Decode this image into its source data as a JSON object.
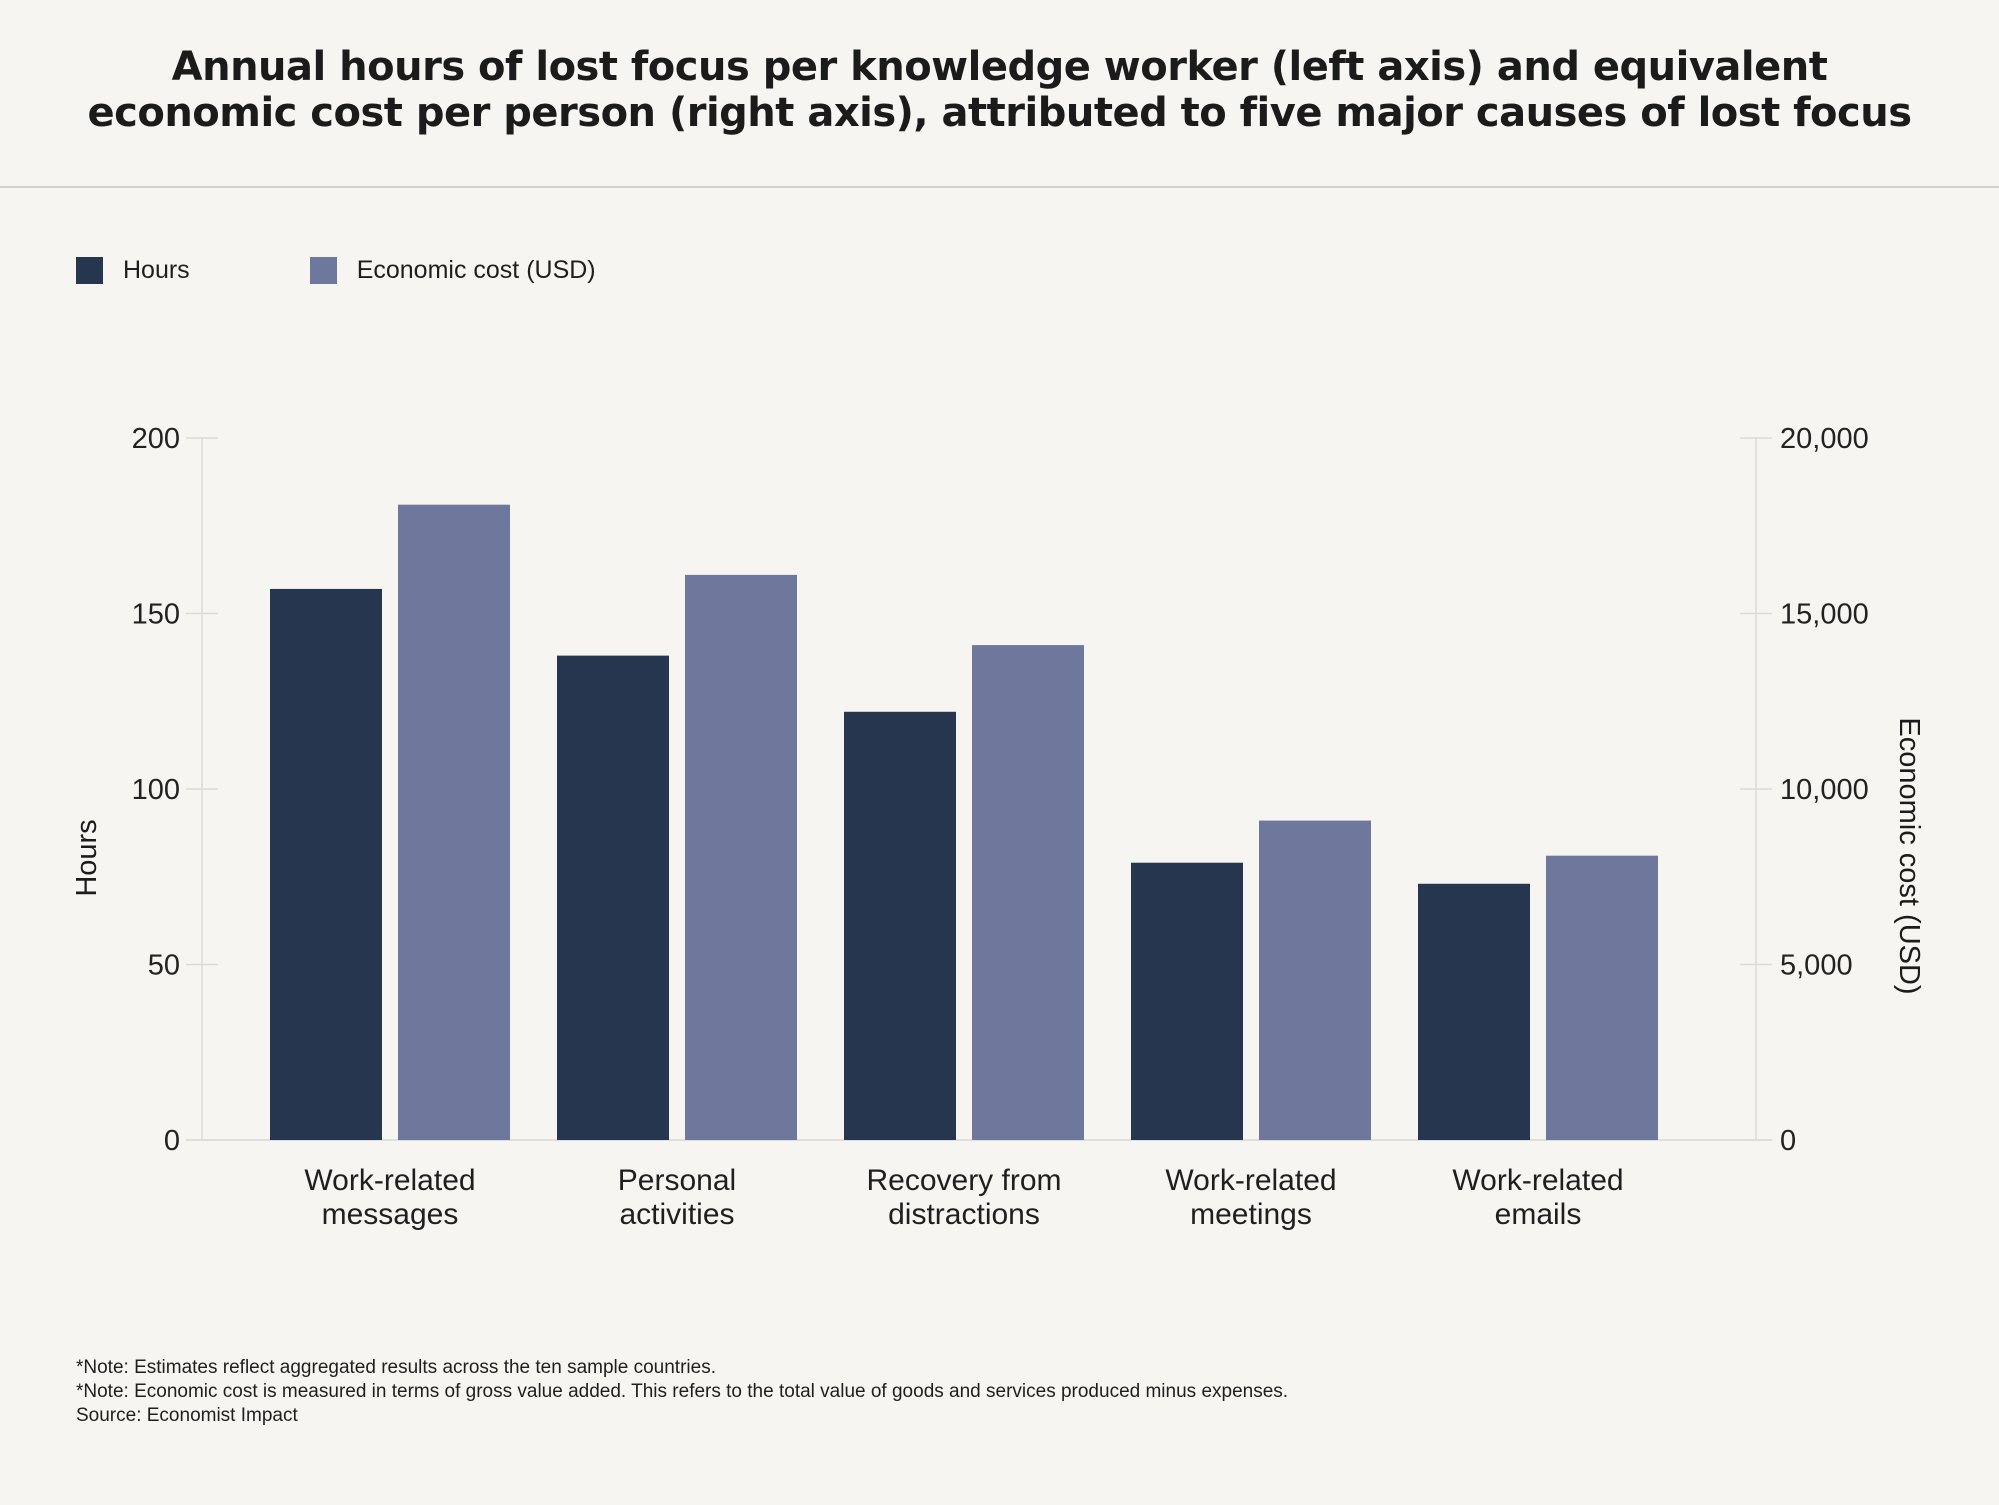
{
  "chart_data": {
    "type": "bar",
    "title_lines": [
      "Annual hours of lost focus per knowledge worker (left axis) and equivalent",
      "economic cost per person (right axis), attributed to five major causes of lost focus"
    ],
    "categories": [
      [
        "Work-related",
        "messages"
      ],
      [
        "Personal",
        "activities"
      ],
      [
        "Recovery from",
        "distractions"
      ],
      [
        "Work-related",
        "meetings"
      ],
      [
        "Work-related",
        "emails"
      ]
    ],
    "series": [
      {
        "name": "Hours",
        "axis": "left",
        "color": "#27364f",
        "values": [
          157,
          138,
          122,
          79,
          73
        ]
      },
      {
        "name": "Economic cost (USD)",
        "axis": "right",
        "color": "#6e789c",
        "values": [
          18100,
          16100,
          14100,
          9100,
          8100
        ]
      }
    ],
    "left_axis": {
      "label": "Hours",
      "ylim": [
        0,
        200
      ],
      "ticks": [
        "0",
        "50",
        "100",
        "150",
        "200"
      ]
    },
    "right_axis": {
      "label": "Economic cost (USD)",
      "ylim": [
        0,
        20000
      ],
      "ticks": [
        "0",
        "5,000",
        "10,000",
        "15,000",
        "20,000"
      ]
    },
    "notes": [
      "*Note: Estimates reflect aggregated results across the ten sample countries.",
      "*Note: Economic cost is measured in terms of gross value added. This refers to the total value of goods and services produced minus expenses.",
      "Source: Economist Impact"
    ]
  }
}
